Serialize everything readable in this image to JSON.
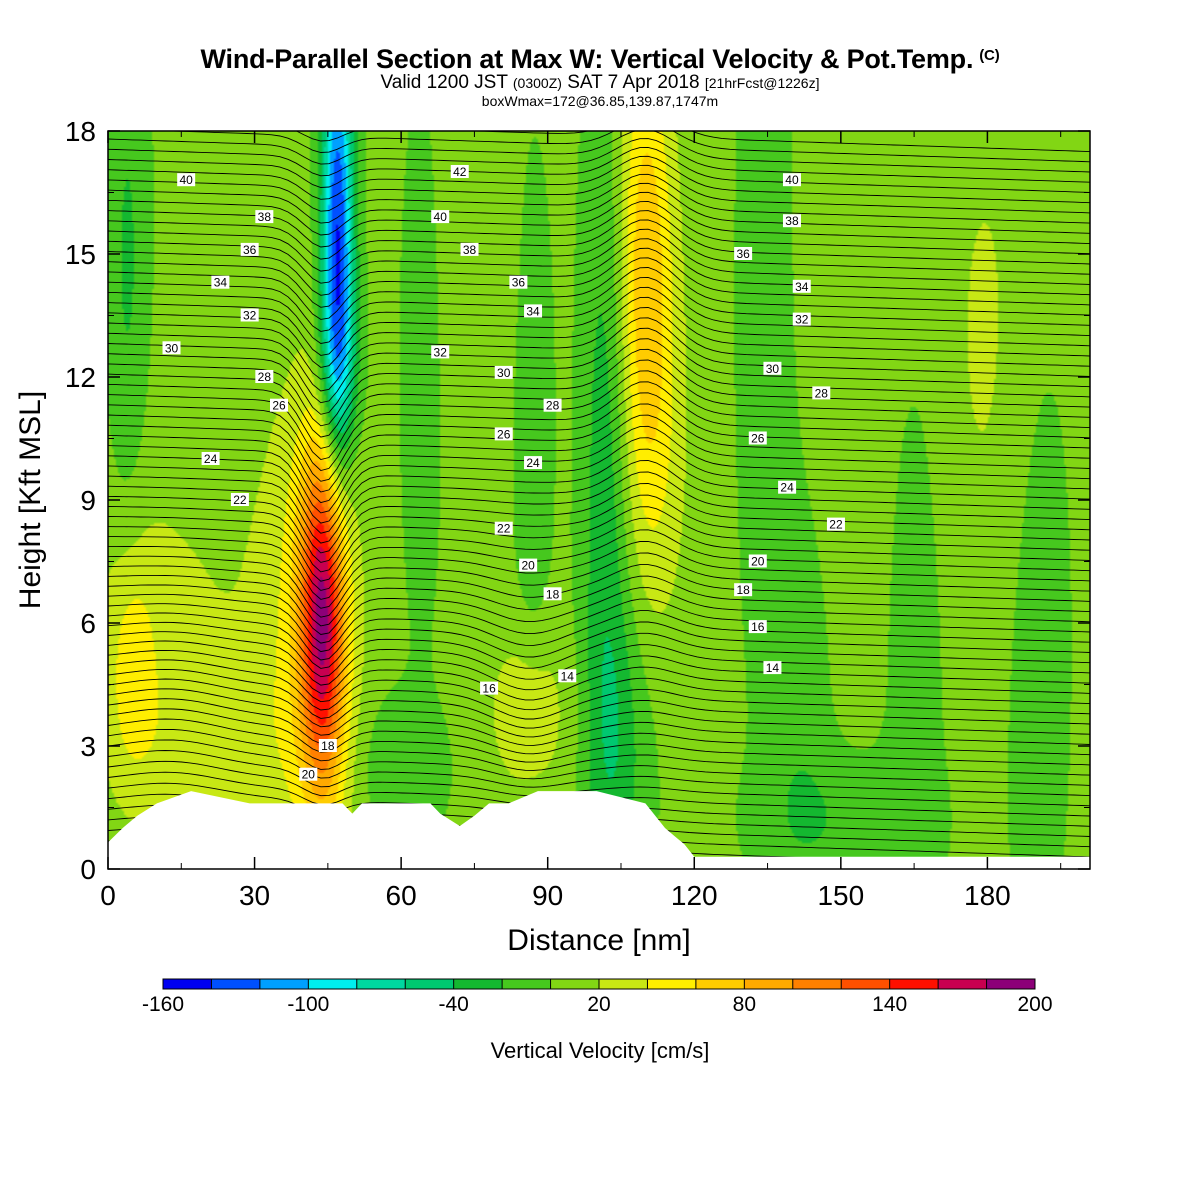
{
  "header": {
    "title": "Wind-Parallel Section at Max W: Vertical Velocity & Pot.Temp.",
    "copyright": "(C)",
    "valid_prefix": "Valid 1200 JST",
    "valid_utc": "(0300Z)",
    "valid_date": "SAT 7 Apr 2018",
    "forecast_info": "[21hrFcst@1226z]",
    "box_info": "boxWmax=172@36.85,139.87,1747m"
  },
  "chart_data": {
    "type": "heatmap",
    "title": "Wind-Parallel Section at Max W: Vertical Velocity & Pot.Temp.",
    "xlabel": "Distance [nm]",
    "ylabel": "Height [Kft MSL]",
    "xlim": [
      0,
      201
    ],
    "ylim": [
      0,
      18
    ],
    "x_ticks": [
      "0",
      "30",
      "60",
      "90",
      "120",
      "150",
      "180"
    ],
    "y_ticks": [
      "0",
      "3",
      "6",
      "9",
      "12",
      "15",
      "18"
    ],
    "colorbar": {
      "label": "Vertical Velocity [cm/s]",
      "levels": [
        -160,
        -140,
        -120,
        -100,
        -80,
        -60,
        -40,
        -20,
        0,
        20,
        40,
        60,
        80,
        100,
        120,
        140,
        160,
        180,
        200
      ],
      "colors": [
        "#0000f0",
        "#0050ff",
        "#00a0ff",
        "#00eeee",
        "#00d8a0",
        "#00c870",
        "#14b830",
        "#46c81e",
        "#82d614",
        "#c8e814",
        "#ffee00",
        "#ffcc00",
        "#ffaa00",
        "#ff8000",
        "#ff5000",
        "#ff1000",
        "#c80050",
        "#8c0078"
      ],
      "tick_labels": [
        {
          "value": -160,
          "label": "-160"
        },
        {
          "value": -100,
          "label": "-100"
        },
        {
          "value": -40,
          "label": "-40"
        },
        {
          "value": 20,
          "label": "20"
        },
        {
          "value": 80,
          "label": "80"
        },
        {
          "value": 140,
          "label": "140"
        },
        {
          "value": 200,
          "label": "200"
        }
      ]
    },
    "background_value": 5,
    "features": [
      {
        "xc": 44,
        "yc": 6.2,
        "sx": 3.2,
        "sy": 3.0,
        "a": 150
      },
      {
        "xc": 41,
        "yc": 5.8,
        "sx": 7,
        "sy": 4.5,
        "a": 40
      },
      {
        "xc": 47,
        "yc": 15.5,
        "sx": 2.3,
        "sy": 3.8,
        "a": -145
      },
      {
        "xc": 47,
        "yc": 12.2,
        "sx": 3.2,
        "sy": 1.6,
        "a": -40
      },
      {
        "xc": 110,
        "yc": 15,
        "sx": 4,
        "sy": 4,
        "a": 65
      },
      {
        "xc": 112,
        "yc": 10,
        "sx": 5,
        "sy": 3.5,
        "a": 25
      },
      {
        "xc": 102,
        "yc": 9,
        "sx": 3.5,
        "sy": 7,
        "a": -40
      },
      {
        "xc": 105,
        "yc": 3,
        "sx": 5,
        "sy": 2.5,
        "a": -25
      },
      {
        "xc": 86,
        "yc": 3.8,
        "sx": 6,
        "sy": 1.5,
        "a": 30
      },
      {
        "xc": 5,
        "yc": 5,
        "sx": 3.5,
        "sy": 2,
        "a": 35
      },
      {
        "xc": 12,
        "yc": 6,
        "sx": 14,
        "sy": 3.5,
        "a": 18
      },
      {
        "xc": 20,
        "yc": 3,
        "sx": 12,
        "sy": 1.5,
        "a": 18
      },
      {
        "xc": 4,
        "yc": 14.5,
        "sx": 3,
        "sy": 5,
        "a": -28
      },
      {
        "xc": 64,
        "yc": 12,
        "sx": 2.5,
        "sy": 4,
        "a": -25
      },
      {
        "xc": 87,
        "yc": 11,
        "sx": 2.5,
        "sy": 4,
        "a": -25
      },
      {
        "xc": 135,
        "yc": 14,
        "sx": 4,
        "sy": 6,
        "a": -22
      },
      {
        "xc": 142,
        "yc": 5,
        "sx": 5,
        "sy": 4,
        "a": -20
      },
      {
        "xc": 165,
        "yc": 5,
        "sx": 4,
        "sy": 5,
        "a": -18
      },
      {
        "xc": 190,
        "yc": 6,
        "sx": 5,
        "sy": 6,
        "a": -15
      },
      {
        "xc": 150,
        "yc": 1.2,
        "sx": 12,
        "sy": 1.2,
        "a": -20
      },
      {
        "xc": 60,
        "yc": 2.5,
        "sx": 6,
        "sy": 1.2,
        "a": -25
      },
      {
        "xc": 180,
        "yc": 13,
        "sx": 7,
        "sy": 5,
        "a": 18
      },
      {
        "xc": 150,
        "yc": 13,
        "sx": 7,
        "sy": 6,
        "a": 15
      },
      {
        "xc": 76,
        "yc": 15,
        "sx": 5,
        "sy": 3,
        "a": 15
      }
    ],
    "terrain_kft": [
      [
        0,
        0.65
      ],
      [
        3,
        1.0
      ],
      [
        6,
        1.3
      ],
      [
        10,
        1.6
      ],
      [
        17,
        1.9
      ],
      [
        29,
        1.6
      ],
      [
        48,
        1.6
      ],
      [
        50,
        1.35
      ],
      [
        52,
        1.6
      ],
      [
        66,
        1.6
      ],
      [
        68,
        1.35
      ],
      [
        72,
        1.05
      ],
      [
        75,
        1.3
      ],
      [
        78,
        1.6
      ],
      [
        82,
        1.6
      ],
      [
        88,
        1.9
      ],
      [
        100,
        1.9
      ],
      [
        110,
        1.6
      ],
      [
        114,
        1.0
      ],
      [
        116,
        0.8
      ],
      [
        118,
        0.6
      ],
      [
        120,
        0.3
      ],
      [
        201,
        0.3
      ]
    ],
    "isentrope_labels": [
      {
        "x": 16,
        "y": 16.8,
        "label": "40"
      },
      {
        "x": 32,
        "y": 15.9,
        "label": "38"
      },
      {
        "x": 29,
        "y": 15.1,
        "label": "36"
      },
      {
        "x": 23,
        "y": 14.3,
        "label": "34"
      },
      {
        "x": 29,
        "y": 13.5,
        "label": "32"
      },
      {
        "x": 13,
        "y": 12.7,
        "label": "30"
      },
      {
        "x": 32,
        "y": 12.0,
        "label": "28"
      },
      {
        "x": 35,
        "y": 11.3,
        "label": "26"
      },
      {
        "x": 21,
        "y": 10.0,
        "label": "24"
      },
      {
        "x": 27,
        "y": 9.0,
        "label": "22"
      },
      {
        "x": 72,
        "y": 17.0,
        "label": "42"
      },
      {
        "x": 68,
        "y": 15.9,
        "label": "40"
      },
      {
        "x": 74,
        "y": 15.1,
        "label": "38"
      },
      {
        "x": 84,
        "y": 14.3,
        "label": "36"
      },
      {
        "x": 87,
        "y": 13.6,
        "label": "34"
      },
      {
        "x": 68,
        "y": 12.6,
        "label": "32"
      },
      {
        "x": 81,
        "y": 12.1,
        "label": "30"
      },
      {
        "x": 91,
        "y": 11.3,
        "label": "28"
      },
      {
        "x": 81,
        "y": 10.6,
        "label": "26"
      },
      {
        "x": 87,
        "y": 9.9,
        "label": "24"
      },
      {
        "x": 81,
        "y": 8.3,
        "label": "22"
      },
      {
        "x": 86,
        "y": 7.4,
        "label": "20"
      },
      {
        "x": 91,
        "y": 6.7,
        "label": "18"
      },
      {
        "x": 78,
        "y": 4.4,
        "label": "16"
      },
      {
        "x": 94,
        "y": 4.7,
        "label": "14"
      },
      {
        "x": 41,
        "y": 2.3,
        "label": "20"
      },
      {
        "x": 45,
        "y": 3.0,
        "label": "18"
      },
      {
        "x": 140,
        "y": 16.8,
        "label": "40"
      },
      {
        "x": 140,
        "y": 15.8,
        "label": "38"
      },
      {
        "x": 130,
        "y": 15.0,
        "label": "36"
      },
      {
        "x": 142,
        "y": 14.2,
        "label": "34"
      },
      {
        "x": 142,
        "y": 13.4,
        "label": "32"
      },
      {
        "x": 136,
        "y": 12.2,
        "label": "30"
      },
      {
        "x": 146,
        "y": 11.6,
        "label": "28"
      },
      {
        "x": 133,
        "y": 10.5,
        "label": "26"
      },
      {
        "x": 139,
        "y": 9.3,
        "label": "24"
      },
      {
        "x": 149,
        "y": 8.4,
        "label": "22"
      },
      {
        "x": 133,
        "y": 7.5,
        "label": "20"
      },
      {
        "x": 130,
        "y": 6.8,
        "label": "18"
      },
      {
        "x": 133,
        "y": 5.9,
        "label": "16"
      },
      {
        "x": 136,
        "y": 4.9,
        "label": "14"
      }
    ]
  }
}
